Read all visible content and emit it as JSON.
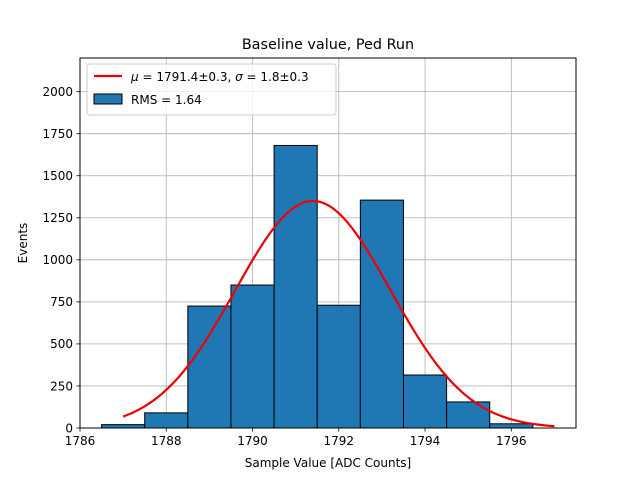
{
  "chart_data": {
    "type": "bar",
    "title": "Baseline value, Ped Run",
    "xlabel": "Sample Value [ADC Counts]",
    "ylabel": "Events",
    "xlim": [
      1786,
      1797.5
    ],
    "ylim": [
      0,
      2200
    ],
    "xticks": [
      1786,
      1788,
      1790,
      1792,
      1794,
      1796
    ],
    "yticks": [
      0,
      250,
      500,
      750,
      1000,
      1250,
      1500,
      1750,
      2000
    ],
    "grid": true,
    "legend_position": "top-left",
    "histogram": {
      "name": "RMS = 1.64",
      "color": "#1f77b4",
      "edge_color": "#000000",
      "bin_edges": [
        1786.5,
        1787.5,
        1788.5,
        1789.5,
        1790.5,
        1791.5,
        1792.5,
        1793.5,
        1794.5,
        1795.5,
        1796.5
      ],
      "counts": [
        20,
        90,
        725,
        850,
        1680,
        730,
        1355,
        315,
        155,
        25
      ]
    },
    "fit": {
      "name": "$\\mu = 1791.4 \\pm 0.3$, $\\sigma = 1.8 \\pm 0.3$",
      "legend_prefix_mu": "μ",
      "legend_mid": " = 1791.4±0.3, ",
      "legend_prefix_sigma": "σ",
      "legend_tail": " = 1.8±0.3",
      "color": "#ee0000",
      "mu": 1791.4,
      "sigma": 1.8,
      "amplitude": 1350,
      "x_range": [
        1787,
        1797
      ]
    }
  }
}
